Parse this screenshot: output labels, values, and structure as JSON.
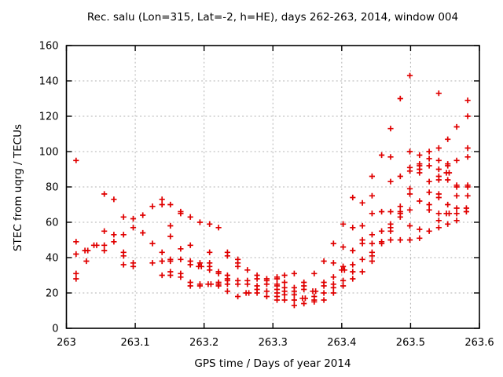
{
  "title": "Rec. salu (Lon=315, Lat=-2, h=HE), days 262-263, 2014, window 004",
  "chart_data": {
    "type": "scatter",
    "title": "Rec. salu (Lon=315, Lat=-2, h=HE), days 262-263, 2014, window 004",
    "xlabel": "GPS time / Days of year 2014",
    "ylabel": "STEC from uqrg / TECUs",
    "xlim": [
      263.0,
      263.6
    ],
    "ylim": [
      0,
      160
    ],
    "xtick_labels": [
      "263",
      "263.1",
      "263.2",
      "263.3",
      "263.4",
      "263.5",
      "263.6"
    ],
    "xtick_values": [
      263.0,
      263.1,
      263.2,
      263.3,
      263.4,
      263.5,
      263.6
    ],
    "ytick_labels": [
      "0",
      "20",
      "40",
      "60",
      "80",
      "100",
      "120",
      "140",
      "160"
    ],
    "ytick_values": [
      0,
      20,
      40,
      60,
      80,
      100,
      120,
      140,
      160
    ],
    "grid": true,
    "legend": "none",
    "marker": "plus",
    "marker_color": "#e00000",
    "grid_color": "#b3b3b3",
    "border_color": "#000000",
    "series": [
      {
        "name": "STEC from uqrg",
        "points": [
          [
            263.014,
            95
          ],
          [
            263.014,
            49
          ],
          [
            263.014,
            42
          ],
          [
            263.014,
            31
          ],
          [
            263.014,
            28
          ],
          [
            263.027,
            44
          ],
          [
            263.031,
            44
          ],
          [
            263.029,
            38
          ],
          [
            263.04,
            47
          ],
          [
            263.044,
            47
          ],
          [
            263.055,
            76
          ],
          [
            263.055,
            55
          ],
          [
            263.055,
            47
          ],
          [
            263.055,
            44
          ],
          [
            263.069,
            73
          ],
          [
            263.069,
            53
          ],
          [
            263.069,
            49
          ],
          [
            263.083,
            63
          ],
          [
            263.083,
            53
          ],
          [
            263.083,
            43
          ],
          [
            263.083,
            41
          ],
          [
            263.083,
            36
          ],
          [
            263.097,
            62
          ],
          [
            263.097,
            57
          ],
          [
            263.097,
            37
          ],
          [
            263.097,
            35
          ],
          [
            263.111,
            64
          ],
          [
            263.111,
            54
          ],
          [
            263.125,
            69
          ],
          [
            263.125,
            48
          ],
          [
            263.125,
            37
          ],
          [
            263.139,
            73
          ],
          [
            263.139,
            70
          ],
          [
            263.139,
            43
          ],
          [
            263.139,
            38
          ],
          [
            263.139,
            30
          ],
          [
            263.151,
            70
          ],
          [
            263.151,
            58
          ],
          [
            263.151,
            52
          ],
          [
            263.151,
            39
          ],
          [
            263.151,
            38
          ],
          [
            263.151,
            32
          ],
          [
            263.151,
            30
          ],
          [
            263.166,
            66
          ],
          [
            263.166,
            65
          ],
          [
            263.166,
            45
          ],
          [
            263.166,
            39
          ],
          [
            263.166,
            31
          ],
          [
            263.166,
            29
          ],
          [
            263.18,
            63
          ],
          [
            263.18,
            47
          ],
          [
            263.18,
            38
          ],
          [
            263.18,
            36
          ],
          [
            263.18,
            26
          ],
          [
            263.18,
            24
          ],
          [
            263.194,
            60
          ],
          [
            263.194,
            37
          ],
          [
            263.192,
            35
          ],
          [
            263.196,
            35
          ],
          [
            263.194,
            25
          ],
          [
            263.194,
            24
          ],
          [
            263.208,
            59
          ],
          [
            263.208,
            43
          ],
          [
            263.208,
            37
          ],
          [
            263.208,
            35
          ],
          [
            263.208,
            33
          ],
          [
            263.206,
            25
          ],
          [
            263.21,
            25
          ],
          [
            263.221,
            57
          ],
          [
            263.221,
            32
          ],
          [
            263.221,
            31
          ],
          [
            263.221,
            26
          ],
          [
            263.221,
            25
          ],
          [
            263.221,
            24
          ],
          [
            263.234,
            43
          ],
          [
            263.234,
            41
          ],
          [
            263.234,
            30
          ],
          [
            263.234,
            28
          ],
          [
            263.234,
            27
          ],
          [
            263.234,
            25
          ],
          [
            263.234,
            21
          ],
          [
            263.249,
            39
          ],
          [
            263.249,
            37
          ],
          [
            263.249,
            35
          ],
          [
            263.249,
            27
          ],
          [
            263.249,
            25
          ],
          [
            263.249,
            18
          ],
          [
            263.263,
            33
          ],
          [
            263.263,
            27
          ],
          [
            263.263,
            25
          ],
          [
            263.261,
            20
          ],
          [
            263.265,
            20
          ],
          [
            263.277,
            30
          ],
          [
            263.277,
            28
          ],
          [
            263.277,
            24
          ],
          [
            263.277,
            22
          ],
          [
            263.277,
            20
          ],
          [
            263.291,
            28
          ],
          [
            263.291,
            27
          ],
          [
            263.291,
            25
          ],
          [
            263.291,
            21
          ],
          [
            263.291,
            18
          ],
          [
            263.306,
            29
          ],
          [
            263.306,
            28
          ],
          [
            263.306,
            25
          ],
          [
            263.306,
            24
          ],
          [
            263.306,
            22
          ],
          [
            263.306,
            20
          ],
          [
            263.306,
            18
          ],
          [
            263.306,
            16
          ],
          [
            263.317,
            30
          ],
          [
            263.317,
            26
          ],
          [
            263.317,
            23
          ],
          [
            263.317,
            21
          ],
          [
            263.317,
            19
          ],
          [
            263.317,
            16
          ],
          [
            263.331,
            31
          ],
          [
            263.331,
            23
          ],
          [
            263.331,
            21
          ],
          [
            263.331,
            19
          ],
          [
            263.331,
            16
          ],
          [
            263.331,
            13
          ],
          [
            263.345,
            26
          ],
          [
            263.345,
            24
          ],
          [
            263.345,
            22
          ],
          [
            263.343,
            17
          ],
          [
            263.347,
            17
          ],
          [
            263.345,
            14
          ],
          [
            263.36,
            31
          ],
          [
            263.358,
            21
          ],
          [
            263.362,
            21
          ],
          [
            263.36,
            18
          ],
          [
            263.36,
            16
          ],
          [
            263.36,
            15
          ],
          [
            263.374,
            38
          ],
          [
            263.374,
            26
          ],
          [
            263.374,
            24
          ],
          [
            263.374,
            20
          ],
          [
            263.374,
            16
          ],
          [
            263.388,
            48
          ],
          [
            263.388,
            37
          ],
          [
            263.388,
            29
          ],
          [
            263.388,
            25
          ],
          [
            263.388,
            23
          ],
          [
            263.388,
            20
          ],
          [
            263.402,
            59
          ],
          [
            263.402,
            46
          ],
          [
            263.402,
            35
          ],
          [
            263.4,
            33
          ],
          [
            263.404,
            33
          ],
          [
            263.402,
            27
          ],
          [
            263.402,
            24
          ],
          [
            263.416,
            74
          ],
          [
            263.416,
            57
          ],
          [
            263.416,
            44
          ],
          [
            263.416,
            36
          ],
          [
            263.416,
            32
          ],
          [
            263.416,
            28
          ],
          [
            263.43,
            71
          ],
          [
            263.43,
            58
          ],
          [
            263.43,
            50
          ],
          [
            263.43,
            48
          ],
          [
            263.43,
            39
          ],
          [
            263.43,
            32
          ],
          [
            263.444,
            86
          ],
          [
            263.444,
            75
          ],
          [
            263.444,
            65
          ],
          [
            263.444,
            53
          ],
          [
            263.444,
            48
          ],
          [
            263.444,
            43
          ],
          [
            263.444,
            41
          ],
          [
            263.444,
            38
          ],
          [
            263.458,
            98
          ],
          [
            263.458,
            66
          ],
          [
            263.458,
            55
          ],
          [
            263.458,
            49
          ],
          [
            263.458,
            48
          ],
          [
            263.471,
            113
          ],
          [
            263.471,
            97
          ],
          [
            263.471,
            83
          ],
          [
            263.471,
            66
          ],
          [
            263.471,
            59
          ],
          [
            263.471,
            57
          ],
          [
            263.471,
            55
          ],
          [
            263.471,
            50
          ],
          [
            263.485,
            130
          ],
          [
            263.485,
            86
          ],
          [
            263.485,
            69
          ],
          [
            263.485,
            66
          ],
          [
            263.485,
            65
          ],
          [
            263.485,
            63
          ],
          [
            263.485,
            50
          ],
          [
            263.499,
            143
          ],
          [
            263.499,
            100
          ],
          [
            263.499,
            91
          ],
          [
            263.499,
            89
          ],
          [
            263.499,
            79
          ],
          [
            263.499,
            76
          ],
          [
            263.499,
            67
          ],
          [
            263.499,
            58
          ],
          [
            263.499,
            50
          ],
          [
            263.513,
            98
          ],
          [
            263.513,
            93
          ],
          [
            263.513,
            92
          ],
          [
            263.513,
            90
          ],
          [
            263.513,
            88
          ],
          [
            263.513,
            72
          ],
          [
            263.513,
            56
          ],
          [
            263.513,
            51
          ],
          [
            263.527,
            100
          ],
          [
            263.527,
            96
          ],
          [
            263.527,
            92
          ],
          [
            263.527,
            83
          ],
          [
            263.527,
            77
          ],
          [
            263.527,
            70
          ],
          [
            263.527,
            67
          ],
          [
            263.527,
            55
          ],
          [
            263.541,
            133
          ],
          [
            263.541,
            102
          ],
          [
            263.541,
            95
          ],
          [
            263.541,
            90
          ],
          [
            263.541,
            86
          ],
          [
            263.541,
            84
          ],
          [
            263.541,
            76
          ],
          [
            263.541,
            74
          ],
          [
            263.541,
            65
          ],
          [
            263.541,
            61
          ],
          [
            263.541,
            57
          ],
          [
            263.554,
            107
          ],
          [
            263.554,
            93
          ],
          [
            263.554,
            92
          ],
          [
            263.552,
            88
          ],
          [
            263.556,
            88
          ],
          [
            263.554,
            84
          ],
          [
            263.554,
            70
          ],
          [
            263.552,
            65
          ],
          [
            263.556,
            65
          ],
          [
            263.554,
            59
          ],
          [
            263.567,
            114
          ],
          [
            263.567,
            95
          ],
          [
            263.567,
            81
          ],
          [
            263.567,
            80
          ],
          [
            263.567,
            75
          ],
          [
            263.567,
            68
          ],
          [
            263.567,
            65
          ],
          [
            263.567,
            61
          ],
          [
            263.583,
            129
          ],
          [
            263.583,
            120
          ],
          [
            263.583,
            102
          ],
          [
            263.583,
            97
          ],
          [
            263.583,
            81
          ],
          [
            263.583,
            80
          ],
          [
            263.583,
            75
          ],
          [
            263.581,
            68
          ],
          [
            263.581,
            66
          ]
        ]
      }
    ]
  }
}
